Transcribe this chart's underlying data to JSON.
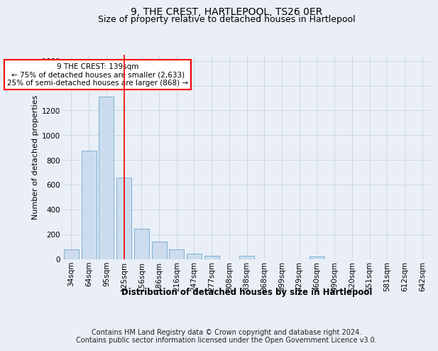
{
  "title": "9, THE CREST, HARTLEPOOL, TS26 0ER",
  "subtitle": "Size of property relative to detached houses in Hartlepool",
  "xlabel": "Distribution of detached houses by size in Hartlepool",
  "ylabel": "Number of detached properties",
  "footer_line1": "Contains HM Land Registry data © Crown copyright and database right 2024.",
  "footer_line2": "Contains public sector information licensed under the Open Government Licence v3.0.",
  "categories": [
    "34sqm",
    "64sqm",
    "95sqm",
    "125sqm",
    "156sqm",
    "186sqm",
    "216sqm",
    "247sqm",
    "277sqm",
    "308sqm",
    "338sqm",
    "368sqm",
    "399sqm",
    "429sqm",
    "460sqm",
    "490sqm",
    "520sqm",
    "551sqm",
    "581sqm",
    "612sqm",
    "642sqm"
  ],
  "values": [
    75,
    875,
    1310,
    660,
    245,
    140,
    75,
    45,
    25,
    0,
    25,
    0,
    0,
    0,
    20,
    0,
    0,
    0,
    0,
    0,
    0
  ],
  "bar_color": "#ccdcee",
  "bar_edge_color": "#7aafd4",
  "red_line_x": 3.0,
  "annotation_text": "9 THE CREST: 139sqm\n← 75% of detached houses are smaller (2,633)\n25% of semi-detached houses are larger (868) →",
  "annotation_box_color": "white",
  "annotation_box_edge_color": "red",
  "ylim": [
    0,
    1650
  ],
  "yticks": [
    0,
    200,
    400,
    600,
    800,
    1000,
    1200,
    1400,
    1600
  ],
  "grid_color": "#c8d4e4",
  "background_color": "#eaeff7",
  "plot_background_color": "#eaeff7",
  "title_fontsize": 10,
  "subtitle_fontsize": 9,
  "axis_label_fontsize": 8.5,
  "tick_fontsize": 7.5,
  "footer_fontsize": 7,
  "annotation_fontsize": 7.5,
  "ylabel_fontsize": 8
}
